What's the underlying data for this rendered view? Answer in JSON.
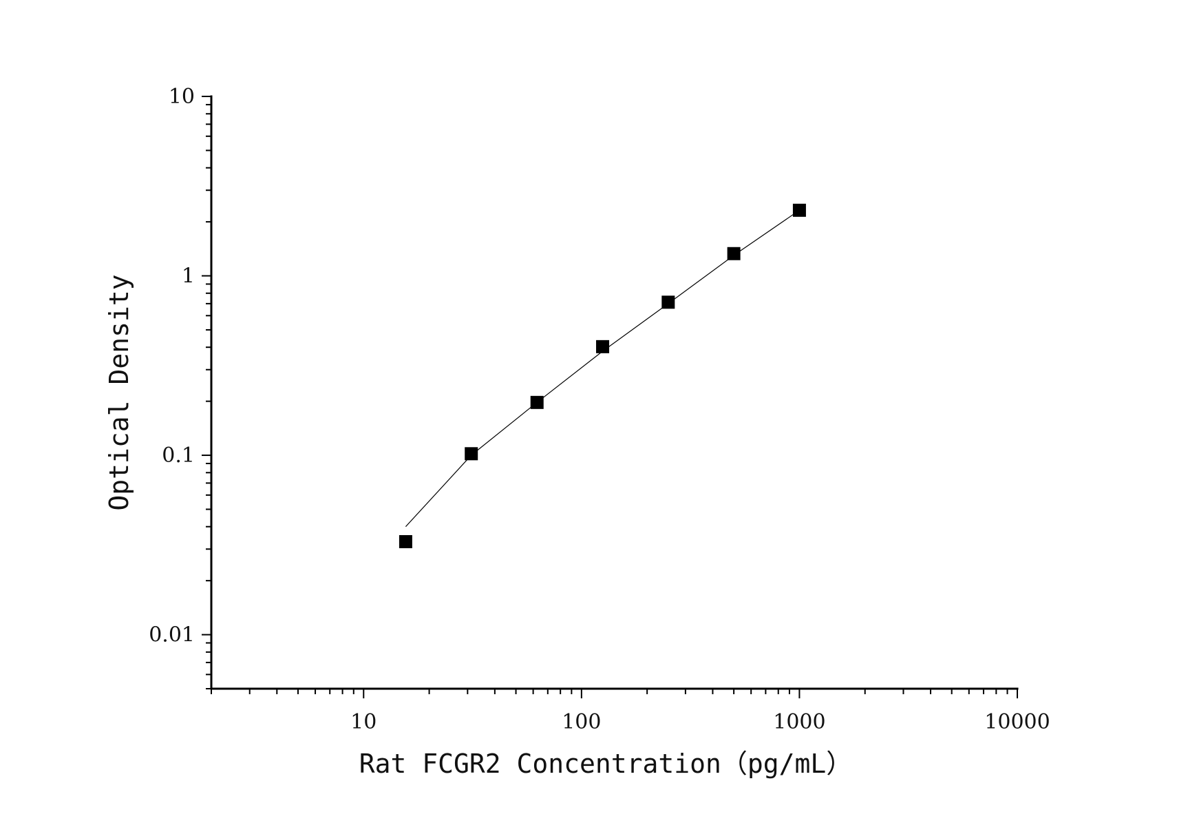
{
  "chart_data": {
    "type": "scatter",
    "title": "",
    "xlabel": "Rat FCGR2 Concentration（pg/mL）",
    "ylabel": "Optical Density",
    "xscale": "log",
    "yscale": "log",
    "xlim": [
      2,
      10000
    ],
    "ylim": [
      0.005,
      10
    ],
    "grid": false,
    "x_ticks": [
      {
        "value": 10,
        "label": "10"
      },
      {
        "value": 100,
        "label": "100"
      },
      {
        "value": 1000,
        "label": "1000"
      },
      {
        "value": 10000,
        "label": "10000"
      }
    ],
    "y_ticks": [
      {
        "value": 0.01,
        "label": "0.01"
      },
      {
        "value": 0.1,
        "label": "0.1"
      },
      {
        "value": 1,
        "label": "1"
      },
      {
        "value": 10,
        "label": "10"
      }
    ],
    "series": [
      {
        "marker": "square",
        "color": "#000000",
        "x": [
          15.6,
          31.2,
          62.5,
          125,
          250,
          500,
          1000
        ],
        "y": [
          0.033,
          0.102,
          0.197,
          0.403,
          0.713,
          1.33,
          2.32
        ]
      }
    ],
    "fit_curve": {
      "color": "#000000",
      "x": [
        15.6,
        31.2,
        62.5,
        125,
        250,
        500,
        1000
      ],
      "y": [
        0.04,
        0.1,
        0.197,
        0.38,
        0.7,
        1.3,
        2.32
      ]
    }
  }
}
